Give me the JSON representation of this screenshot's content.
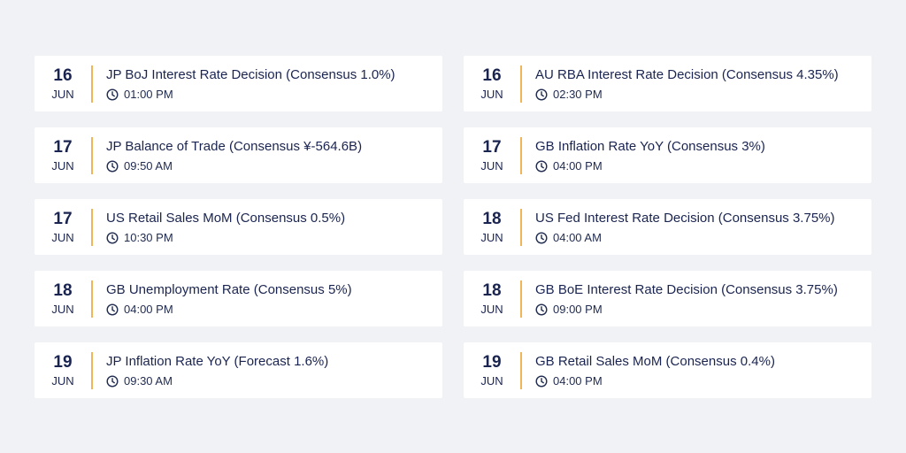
{
  "events": [
    {
      "day": "16",
      "month": "JUN",
      "title": "JP BoJ Interest Rate Decision (Consensus 1.0%)",
      "time": "01:00 PM"
    },
    {
      "day": "16",
      "month": "JUN",
      "title": "AU RBA Interest Rate Decision (Consensus 4.35%)",
      "time": "02:30 PM"
    },
    {
      "day": "17",
      "month": "JUN",
      "title": "JP Balance of Trade (Consensus ¥-564.6B)",
      "time": "09:50 AM"
    },
    {
      "day": "17",
      "month": "JUN",
      "title": "GB Inflation Rate YoY (Consensus 3%)",
      "time": "04:00 PM"
    },
    {
      "day": "17",
      "month": "JUN",
      "title": "US Retail Sales MoM (Consensus 0.5%)",
      "time": "10:30 PM"
    },
    {
      "day": "18",
      "month": "JUN",
      "title": "US Fed Interest Rate Decision (Consensus 3.75%)",
      "time": "04:00 AM"
    },
    {
      "day": "18",
      "month": "JUN",
      "title": "GB Unemployment Rate (Consensus 5%)",
      "time": "04:00 PM"
    },
    {
      "day": "18",
      "month": "JUN",
      "title": "GB BoE Interest Rate Decision (Consensus 3.75%)",
      "time": "09:00 PM"
    },
    {
      "day": "19",
      "month": "JUN",
      "title": "JP Inflation Rate YoY (Forecast 1.6%)",
      "time": "09:30 AM"
    },
    {
      "day": "19",
      "month": "JUN",
      "title": "GB Retail Sales MoM (Consensus 0.4%)",
      "time": "04:00 PM"
    }
  ],
  "icons": {
    "time": "clock-icon"
  },
  "colors": {
    "background": "#f1f2f6",
    "card": "#ffffff",
    "accent": "#f0b557",
    "text": "#1a2450"
  }
}
